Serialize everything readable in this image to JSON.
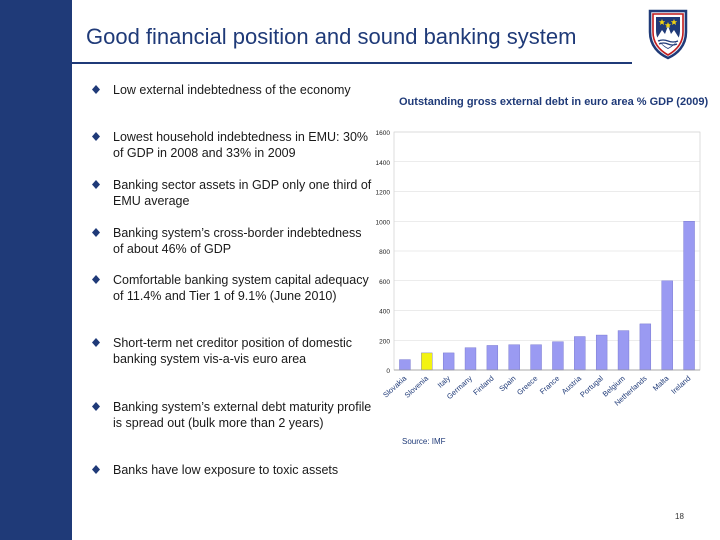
{
  "slide": {
    "title": "Good financial position and sound banking system",
    "page_number": "18",
    "bullets": [
      {
        "text": "Low external indebtedness of the economy"
      },
      {
        "text": "Lowest household indebtedness in EMU: 30% of GDP in 2008 and 33% in 2009"
      },
      {
        "text": "Banking sector assets in GDP only one third of EMU average"
      },
      {
        "text": "Banking system’s cross-border indebtedness of about 46% of GDP"
      },
      {
        "text": "Comfortable banking system capital adequacy of 11.4% and Tier 1 of 9.1% (June 2010)"
      },
      {
        "text": "Short-term net creditor position of domestic banking system vis-a-vis euro area"
      },
      {
        "text": "Banking system’s external debt maturity profile is spread out (bulk more than 2 years)"
      },
      {
        "text": "Banks have low exposure to toxic assets"
      }
    ],
    "colors": {
      "sidebar": "#1f3a78",
      "accent": "#1f3a78",
      "bullet_mark": "#1f3a78",
      "bar": "#9a9af2",
      "bar_highlight": "#f3f311"
    },
    "crest_icon": "slovenia-coat-of-arms"
  },
  "chart_data": {
    "type": "bar",
    "title": "Outstanding gross external debt in euro area % GDP (2009)",
    "source": "Source: IMF",
    "categories": [
      "Slovakia",
      "Slovenia",
      "Italy",
      "Germany",
      "Finland",
      "Spain",
      "Greece",
      "France",
      "Austria",
      "Portugal",
      "Belgium",
      "Netherlands",
      "Malta",
      "Ireland"
    ],
    "values": [
      70,
      115,
      115,
      150,
      165,
      170,
      170,
      190,
      225,
      235,
      265,
      310,
      600,
      1000
    ],
    "highlight": "Slovenia",
    "y_ticks": [
      0,
      200,
      400,
      600,
      800,
      1000,
      1200,
      1400,
      1600
    ],
    "ylim": [
      0,
      1600
    ],
    "grid": true,
    "legend": "none"
  }
}
